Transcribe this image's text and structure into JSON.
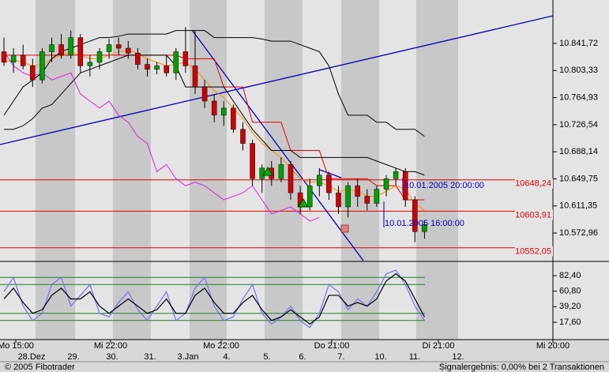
{
  "chart_data": {
    "type": "candlestick",
    "ylim": [
      10533.8,
      10903.3
    ],
    "yticks": [
      {
        "value": 10841.72,
        "label": "10.841,72"
      },
      {
        "value": 10803.33,
        "label": "10.803,33"
      },
      {
        "value": 10764.93,
        "label": "10.764,93"
      },
      {
        "value": 10726.54,
        "label": "10.726,54"
      },
      {
        "value": 10688.14,
        "label": "10.688,14"
      },
      {
        "value": 10649.75,
        "label": "10.649,75"
      },
      {
        "value": 10611.35,
        "label": "10.611,35"
      },
      {
        "value": 10572.96,
        "label": "10.572,96"
      }
    ],
    "levels": [
      {
        "value": 10648.24,
        "label": "10648,24"
      },
      {
        "value": 10603.91,
        "label": "10603,91"
      },
      {
        "value": 10552.05,
        "label": "10552,05"
      }
    ],
    "annotations": [
      "10.01.2005 20:00:00",
      "10.01.2005 16:00:00"
    ],
    "x_labels_top": [
      "Mo 15:00",
      "Mi 22:00",
      "Mo 22:00",
      "Do 21:00",
      "Di 21:00",
      "Mi 20:00"
    ],
    "x_labels_bottom": [
      "28.Dez",
      "29.",
      "30.",
      "31.",
      "3.Jan",
      "4.",
      "5.",
      "6.",
      "7.",
      "10.",
      "11.",
      "12."
    ],
    "footer_left": "© 2005 Fibotrader",
    "footer_right": "Signalergebnis: 0,00% bei 2 Transaktionen",
    "up_color": "#00a000",
    "down_color": "#d00000",
    "candles": [
      [
        10830,
        10850,
        10810,
        10815
      ],
      [
        10815,
        10835,
        10800,
        10825
      ],
      [
        10825,
        10840,
        10805,
        10810
      ],
      [
        10810,
        10820,
        10780,
        10790
      ],
      [
        10790,
        10835,
        10785,
        10830
      ],
      [
        10830,
        10850,
        10815,
        10840
      ],
      [
        10840,
        10855,
        10820,
        10825
      ],
      [
        10825,
        10860,
        10820,
        10850
      ],
      [
        10850,
        10855,
        10800,
        10810
      ],
      [
        10810,
        10825,
        10795,
        10815
      ],
      [
        10815,
        10835,
        10805,
        10830
      ],
      [
        10830,
        10848,
        10820,
        10840
      ],
      [
        10840,
        10850,
        10825,
        10835
      ],
      [
        10835,
        10845,
        10820,
        10828
      ],
      [
        10828,
        10835,
        10805,
        10812
      ],
      [
        10812,
        10820,
        10795,
        10805
      ],
      [
        10805,
        10815,
        10798,
        10810
      ],
      [
        10810,
        10825,
        10795,
        10800
      ],
      [
        10800,
        10835,
        10790,
        10830
      ],
      [
        10830,
        10865,
        10800,
        10810
      ],
      [
        10810,
        10860,
        10770,
        10780
      ],
      [
        10780,
        10790,
        10750,
        10760
      ],
      [
        10760,
        10770,
        10730,
        10740
      ],
      [
        10740,
        10760,
        10725,
        10750
      ],
      [
        10750,
        10755,
        10715,
        10720
      ],
      [
        10720,
        10730,
        10690,
        10700
      ],
      [
        10700,
        10705,
        10640,
        10650
      ],
      [
        10650,
        10670,
        10630,
        10665
      ],
      [
        10665,
        10675,
        10640,
        10650
      ],
      [
        10650,
        10680,
        10645,
        10670
      ],
      [
        10670,
        10675,
        10620,
        10630
      ],
      [
        10630,
        10640,
        10600,
        10610
      ],
      [
        10610,
        10650,
        10605,
        10640
      ],
      [
        10640,
        10665,
        10625,
        10655
      ],
      [
        10655,
        10660,
        10620,
        10630
      ],
      [
        10630,
        10640,
        10600,
        10610
      ],
      [
        10610,
        10645,
        10595,
        10640
      ],
      [
        10640,
        10650,
        10610,
        10625
      ],
      [
        10625,
        10635,
        10605,
        10615
      ],
      [
        10615,
        10640,
        10610,
        10635
      ],
      [
        10635,
        10655,
        10625,
        10650
      ],
      [
        10650,
        10665,
        10640,
        10660
      ],
      [
        10660,
        10665,
        10610,
        10620
      ],
      [
        10620,
        10625,
        10560,
        10575
      ],
      [
        10575,
        10590,
        10565,
        10585
      ]
    ],
    "series": [
      {
        "color": "#e00000",
        "values": [
          10825,
          10825,
          10825,
          10825,
          10825,
          10825,
          10825,
          10825,
          10825,
          10825,
          10825,
          10825,
          10825,
          10825,
          10825,
          10825,
          10825,
          10825,
          10825,
          10820,
          10820,
          10820,
          10820,
          10780,
          10780,
          10780,
          10730,
          10730,
          10730,
          10730,
          10690,
          10690,
          10690,
          10690,
          10650,
          10650,
          10650,
          10650,
          10650,
          10640,
          10640,
          10640,
          10620,
          10620,
          10620
        ]
      },
      {
        "color": "#ff8c00",
        "values": [
          10815,
          10818,
          10815,
          10810,
          10812,
          10820,
          10825,
          10830,
          10825,
          10820,
          10820,
          10825,
          10830,
          10832,
          10828,
          10820,
          10815,
          10810,
          10812,
          10815,
          10805,
          10790,
          10775,
          10765,
          10750,
          10735,
          10715,
          10700,
          10690,
          10680,
          10665,
          10650,
          10645,
          10645,
          10640,
          10632,
          10635,
          10632,
          10625,
          10625,
          10632,
          10640,
          10635,
          10615,
          10605
        ]
      },
      {
        "color": "#000000",
        "values": [
          10740,
          10760,
          10780,
          10790,
          10800,
          10820,
          10830,
          10835,
          10840,
          10845,
          10850,
          10850,
          10852,
          10855,
          10855,
          10855,
          10855,
          10855,
          10860,
          10860,
          10860,
          10860,
          10850,
          10850,
          10850,
          10850,
          10850,
          10848,
          10845,
          10845,
          10845,
          10840,
          10835,
          10830,
          10810,
          10770,
          10740,
          10740,
          10740,
          10730,
          10730,
          10720,
          10720,
          10720,
          10710
        ]
      },
      {
        "color": "#000000",
        "values": [
          10720,
          10720,
          10725,
          10735,
          10750,
          10755,
          10770,
          10785,
          10800,
          10805,
          10810,
          10815,
          10820,
          10825,
          10825,
          10825,
          10825,
          10825,
          10810,
          10780,
          10780,
          10780,
          10780,
          10780,
          10760,
          10740,
          10720,
          10705,
          10690,
          10690,
          10690,
          10680,
          10680,
          10680,
          10680,
          10680,
          10680,
          10680,
          10680,
          10675,
          10670,
          10665,
          10660,
          10660,
          10655
        ]
      },
      {
        "color": "#e020e0",
        "values": [
          10830,
          10810,
          10800,
          10795,
          10800,
          10790,
          10795,
          10800,
          10770,
          10760,
          10750,
          10760,
          10740,
          10730,
          10710,
          10700,
          10660,
          10670,
          10650,
          10640,
          10645,
          10640,
          10630,
          10620,
          10625,
          10630,
          10640,
          10620,
          10600,
          10605,
          10610,
          10600,
          10590,
          10595,
          null,
          null,
          null,
          null,
          null,
          null,
          null,
          null,
          null,
          null,
          null
        ]
      }
    ],
    "osc_ylim": [
      -4.4,
      100
    ],
    "osc_yticks": [
      {
        "value": 82.4,
        "label": "82,40"
      },
      {
        "value": 60.8,
        "label": "60,80"
      },
      {
        "value": 39.2,
        "label": "39,20"
      },
      {
        "value": 17.6,
        "label": "17,60"
      }
    ],
    "osc_levels": [
      80,
      70,
      30,
      20
    ],
    "osc_series": [
      {
        "color": "#7070ff",
        "values": [
          60,
          80,
          40,
          20,
          30,
          70,
          80,
          40,
          55,
          70,
          30,
          25,
          45,
          60,
          35,
          20,
          40,
          60,
          20,
          30,
          65,
          80,
          40,
          20,
          25,
          50,
          70,
          30,
          15,
          25,
          40,
          20,
          10,
          30,
          70,
          60,
          35,
          50,
          40,
          60,
          85,
          90,
          70,
          40,
          20
        ]
      },
      {
        "color": "#000000",
        "values": [
          50,
          65,
          45,
          30,
          35,
          55,
          65,
          50,
          50,
          60,
          40,
          30,
          40,
          50,
          40,
          30,
          35,
          50,
          30,
          30,
          55,
          65,
          45,
          30,
          30,
          45,
          55,
          35,
          20,
          25,
          35,
          25,
          15,
          25,
          55,
          55,
          40,
          45,
          40,
          50,
          75,
          85,
          75,
          50,
          25
        ]
      }
    ]
  }
}
